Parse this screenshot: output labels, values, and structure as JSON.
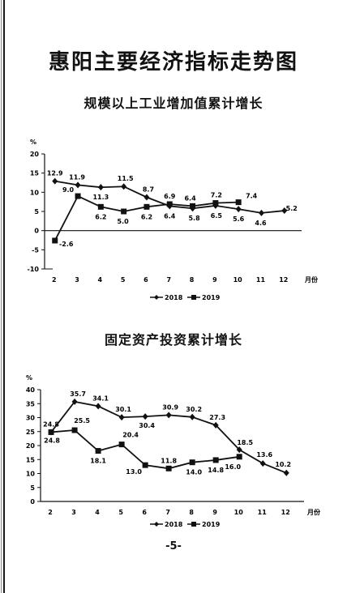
{
  "page": {
    "title": "惠阳主要经济指标走势图",
    "page_number": "-5-"
  },
  "chart_data": [
    {
      "type": "line",
      "title": "规模以上工业增加值累计增长",
      "ylabel": "%",
      "xlabel": "月份",
      "categories": [
        "2",
        "3",
        "4",
        "5",
        "6",
        "7",
        "8",
        "9",
        "10",
        "11",
        "12"
      ],
      "ylim": [
        -10,
        20
      ],
      "yticks": [
        -10,
        -5,
        0,
        5,
        10,
        15,
        20
      ],
      "grid": false,
      "legend": "bottom",
      "series": [
        {
          "name": "2018",
          "marker": "diamond",
          "values": [
            12.9,
            11.9,
            11.3,
            11.5,
            8.7,
            6.4,
            5.8,
            6.5,
            5.6,
            4.6,
            5.2
          ],
          "labels": [
            "12.9",
            "11.9",
            "11.3",
            "11.5",
            "8.7",
            "6.4",
            "5.8",
            "6.5",
            "5.6",
            "4.6",
            "5.2"
          ]
        },
        {
          "name": "2019",
          "marker": "square",
          "values": [
            -2.6,
            9.0,
            6.2,
            5.0,
            6.2,
            6.9,
            6.4,
            7.2,
            7.4,
            null,
            null
          ],
          "labels": [
            "-2.6",
            "9.0",
            "6.2",
            "5.0",
            "6.2",
            "6.9",
            "6.4",
            "7.2",
            "7.4",
            "",
            ""
          ]
        }
      ]
    },
    {
      "type": "line",
      "title": "固定资产投资累计增长",
      "ylabel": "%",
      "xlabel": "月份",
      "categories": [
        "2",
        "3",
        "4",
        "5",
        "6",
        "7",
        "8",
        "9",
        "10",
        "11",
        "12"
      ],
      "ylim": [
        0,
        40
      ],
      "yticks": [
        0,
        5,
        10,
        15,
        20,
        25,
        30,
        35,
        40
      ],
      "grid": false,
      "legend": "bottom",
      "series": [
        {
          "name": "2018",
          "marker": "diamond",
          "values": [
            24.8,
            35.7,
            34.1,
            30.1,
            30.4,
            30.9,
            30.2,
            27.3,
            18.5,
            13.6,
            10.2
          ],
          "labels": [
            "24.8",
            "35.7",
            "34.1",
            "30.1",
            "30.4",
            "30.9",
            "30.2",
            "27.3",
            "18.5",
            "13.6",
            "10.2"
          ]
        },
        {
          "name": "2019",
          "marker": "square",
          "values": [
            24.8,
            25.5,
            18.1,
            20.4,
            13.0,
            11.8,
            14.0,
            14.8,
            16.0,
            null,
            null
          ],
          "labels": [
            "24.8",
            "25.5",
            "18.1",
            "20.4",
            "13.0",
            "11.8",
            "14.0",
            "14.8",
            "16.0",
            "",
            ""
          ]
        }
      ]
    }
  ]
}
